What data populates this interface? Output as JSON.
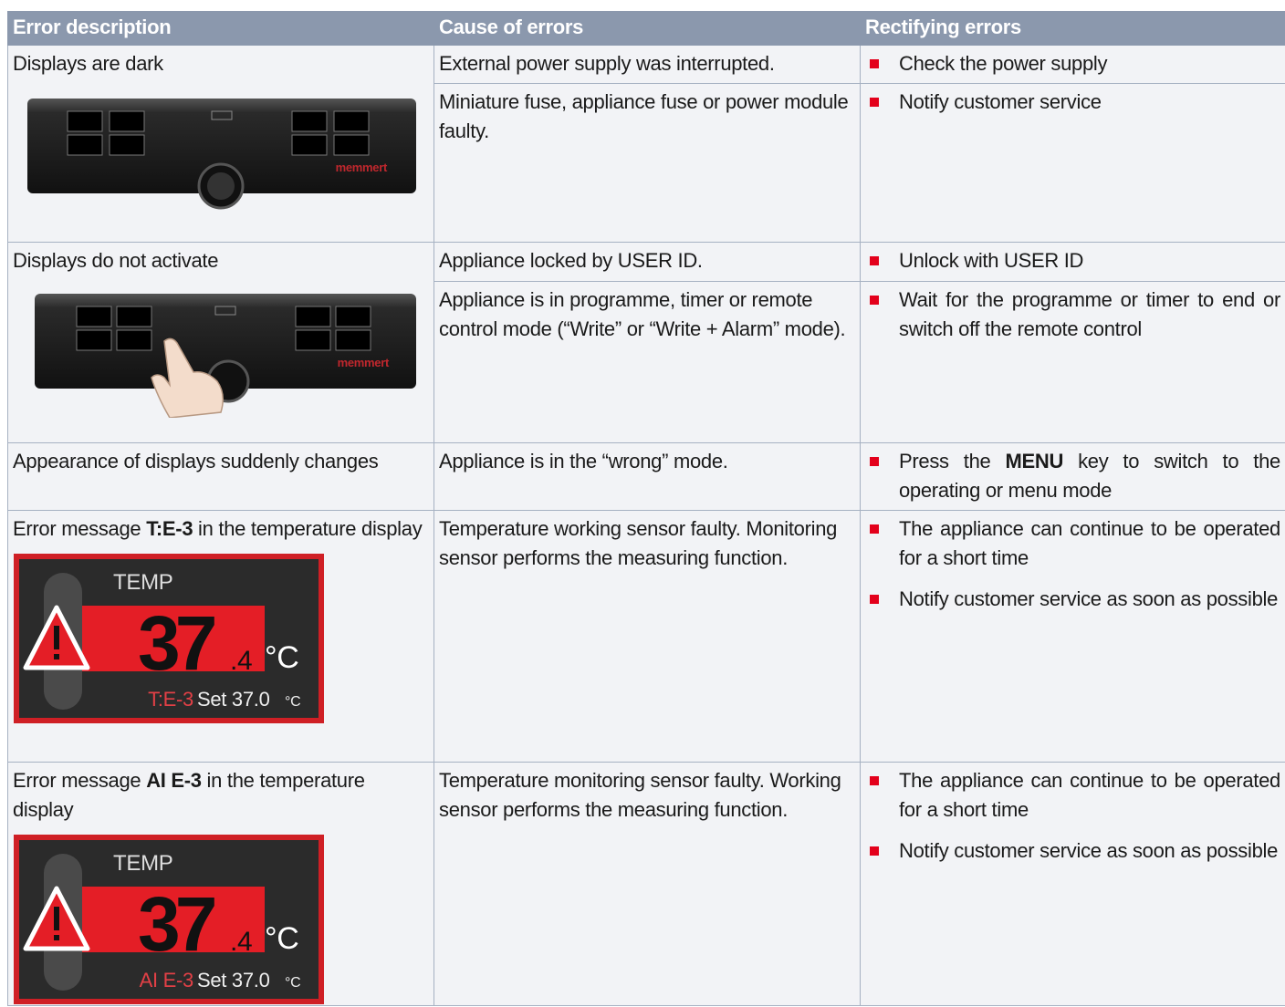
{
  "table": {
    "header": [
      "Error description",
      "Cause of errors",
      "Rectifying errors"
    ],
    "rows": [
      {
        "description": "Displays are dark",
        "brand": "memmert",
        "causes": [
          {
            "text": "External power supply was interrupted.",
            "remedies": [
              "Check the power supply"
            ]
          },
          {
            "text": "Miniature fuse, appliance fuse or power module faulty.",
            "remedies": [
              "Notify customer service"
            ]
          }
        ]
      },
      {
        "description": "Displays do not activate",
        "brand": "memmert",
        "causes": [
          {
            "text": "Appliance locked by USER ID.",
            "remedies": [
              "Unlock with USER ID"
            ]
          },
          {
            "text": "Appliance is in programme, timer or remote control mode (“Write” or “Write + Alarm” mode).",
            "remedies": [
              "Wait for the programme or timer to end or switch off the remote control"
            ]
          }
        ]
      },
      {
        "description": "Appearance of displays suddenly changes",
        "causes": [
          {
            "text": "Appliance is in the “wrong” mode.",
            "remedies": [
              [
                "Press the ",
                "MENU",
                " key to switch to the operating or menu mode"
              ]
            ]
          }
        ]
      },
      {
        "description": [
          "Error message ",
          "T:E-3",
          " in the temperature display"
        ],
        "display": {
          "label": "TEMP",
          "value": "37",
          "decimal": ".4",
          "unit": "°C",
          "error": "T:E-3",
          "set": "Set 37.0",
          "set_unit": "°C"
        },
        "causes": [
          {
            "text": "Temperature working sensor faulty. Monitoring sensor performs the measuring function.",
            "remedies": [
              "The appliance can continue to be operated for a short time",
              "Notify customer service as soon as possible"
            ]
          }
        ]
      },
      {
        "description": [
          "Error message ",
          "AI E-3",
          " in the temperature display"
        ],
        "display": {
          "label": "TEMP",
          "value": "37",
          "decimal": ".4",
          "unit": "°C",
          "error": "AI E-3",
          "set": "Set 37.0",
          "set_unit": "°C"
        },
        "causes": [
          {
            "text": "Temperature monitoring sensor faulty. Working sensor performs the measuring function.",
            "remedies": [
              "The appliance can continue to be operated for a short time",
              "Notify customer service as soon as possible"
            ]
          }
        ]
      }
    ]
  }
}
